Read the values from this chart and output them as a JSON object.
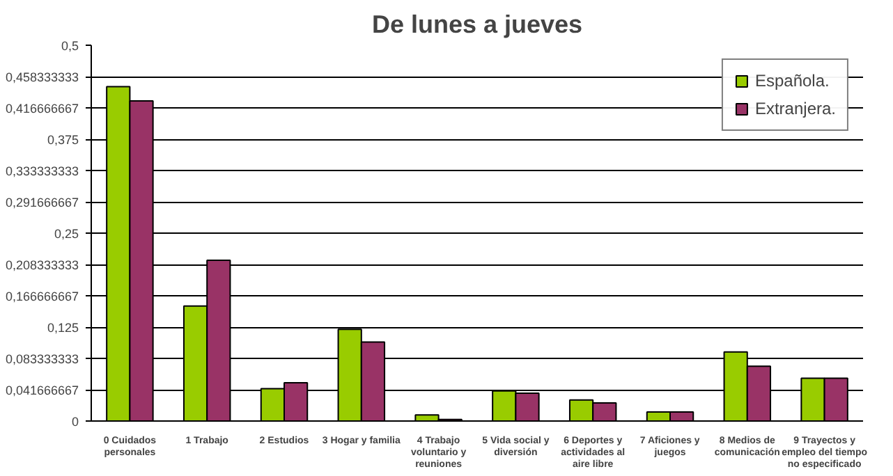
{
  "chart_data": {
    "type": "bar",
    "title": "De lunes a jueves",
    "categories": [
      "0 Cuidados personales",
      "1 Trabajo",
      "2 Estudios",
      "3 Hogar y familia",
      "4 Trabajo voluntario y reuniones",
      "5 Vida social y diversión",
      "6 Deportes y actividades al aire libre",
      "7 Aficiones y juegos",
      "8 Medios de comunicación",
      "9 Trayectos y empleo del tiempo no especificado"
    ],
    "series": [
      {
        "name": "Española.",
        "color": "#99cc00",
        "values": [
          0.445,
          0.153,
          0.043,
          0.122,
          0.008,
          0.04,
          0.028,
          0.012,
          0.092,
          0.057
        ]
      },
      {
        "name": "Extranjera.",
        "color": "#993366",
        "values": [
          0.426,
          0.214,
          0.051,
          0.105,
          0.002,
          0.037,
          0.024,
          0.012,
          0.073,
          0.057
        ]
      }
    ],
    "ylim": [
      0,
      0.5
    ],
    "yticks": [
      0,
      {
        "value": 0.041666667,
        "label": "0,041666667"
      },
      {
        "value": 0.083333333,
        "label": "0,083333333"
      },
      {
        "value": 0.125,
        "label": "0,125"
      },
      {
        "value": 0.166666667,
        "label": "0,166666667"
      },
      {
        "value": 0.208333333,
        "label": "0,208333333"
      },
      {
        "value": 0.25,
        "label": "0,25"
      },
      {
        "value": 0.291666667,
        "label": "0,291666667"
      },
      {
        "value": 0.333333333,
        "label": "0,333333333"
      },
      {
        "value": 0.375,
        "label": "0,375"
      },
      {
        "value": 0.416666667,
        "label": "0,416666667"
      },
      {
        "value": 0.458333333,
        "label": "0,458333333"
      },
      {
        "value": 0.5,
        "label": "0,5"
      }
    ],
    "grid": "y",
    "legend": "top right"
  }
}
